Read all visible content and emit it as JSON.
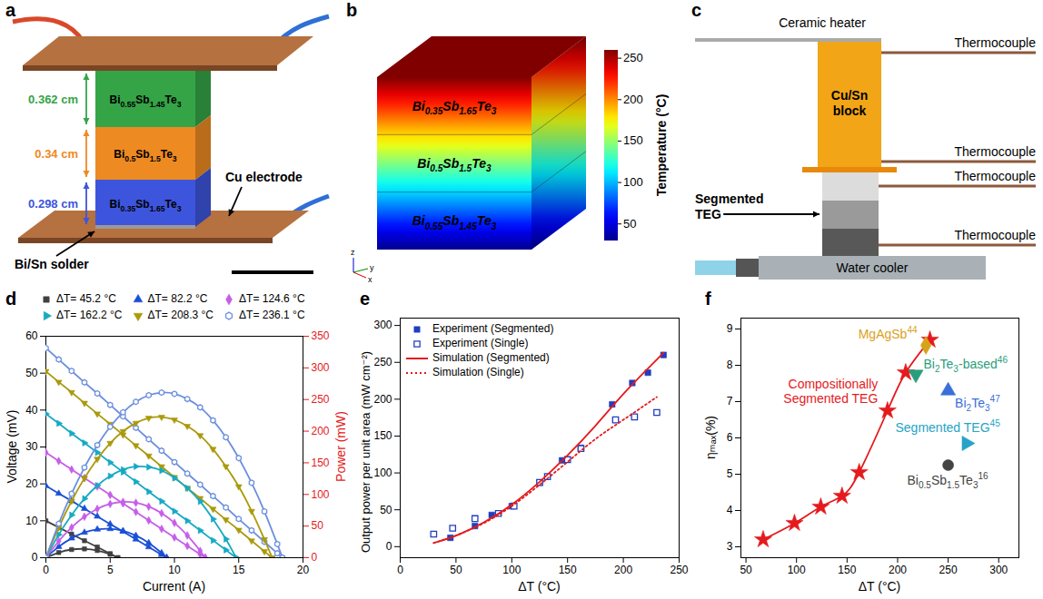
{
  "photo": {
    "letter": "a",
    "legs": [
      {
        "label": "Bi0.55Sb1.45Te3",
        "color": "#35a447",
        "thickness": "0.362 cm"
      },
      {
        "label": "Bi0.5Sb1.5Te3",
        "color": "#ee8a22",
        "thickness": "0.34 cm"
      },
      {
        "label": "Bi0.35Sb1.65Te3",
        "color": "#3d55dc",
        "thickness": "0.298 cm"
      }
    ],
    "solder": "Bi/Sn solder",
    "electrode": "Cu electrode"
  },
  "simulation": {
    "letter": "b",
    "layers": [
      "Bi0.35Sb1.65Te3",
      "Bi0.5Sb1.5Te3",
      "Bi0.55Sb1.45Te3"
    ],
    "axes": [
      "x",
      "y",
      "z"
    ],
    "colorbar": {
      "label": "Temperature (°C)",
      "range": [
        30,
        260
      ],
      "ticks": [
        50,
        100,
        150,
        200,
        250
      ]
    }
  },
  "setup": {
    "letter": "c",
    "heater": "Ceramic heater",
    "block": "Cu/Sn block",
    "thermocouples": [
      "Thermocouple",
      "Thermocouple",
      "Thermocouple",
      "Thermocouple"
    ],
    "teg": "Segmented TEG",
    "cooler": "Water cooler"
  },
  "chart_data": [
    {
      "letter": "d",
      "type": "line",
      "x_label": "Current (A)",
      "y_label": "Voltage (mV)",
      "y2_label": "Power (mW)",
      "xlim": [
        0,
        20
      ],
      "xticks": [
        0,
        5,
        10,
        15,
        20
      ],
      "ylim": [
        0,
        60
      ],
      "yticks": [
        0,
        10,
        20,
        30,
        40,
        50,
        60
      ],
      "y2lim": [
        0,
        350
      ],
      "y2ticks": [
        0,
        50,
        100,
        150,
        200,
        250,
        300,
        350
      ],
      "legend": "top",
      "series": [
        {
          "name": "ΔT= 45.2 °C",
          "color": "#404040",
          "marker": "square",
          "x": [
            0,
            1,
            2,
            3,
            4,
            5,
            5.6
          ],
          "values": [
            10,
            8.2,
            6.4,
            4.6,
            2.9,
            1.1,
            0
          ]
        },
        {
          "name": "ΔT= 82.2 °C",
          "color": "#1a4fd6",
          "marker": "triangle",
          "x": [
            0,
            1,
            2,
            3,
            4,
            5,
            6,
            7,
            8,
            9,
            9.4
          ],
          "values": [
            19.5,
            17.4,
            15.4,
            13.3,
            11.2,
            9.1,
            7.1,
            5.0,
            2.9,
            0.8,
            0
          ]
        },
        {
          "name": "ΔT= 124.6 °C",
          "color": "#c65ee8",
          "marker": "diamond",
          "x": [
            0,
            1,
            2,
            3,
            4,
            5,
            6,
            7,
            8,
            9,
            10,
            11,
            12,
            12.4
          ],
          "values": [
            28.5,
            26.2,
            23.9,
            21.6,
            19.3,
            17.0,
            14.7,
            12.4,
            10.1,
            7.8,
            5.5,
            3.2,
            0.9,
            0
          ]
        },
        {
          "name": "ΔT= 162.2 °C",
          "color": "#17a9c4",
          "marker": "triangle-right",
          "x": [
            0,
            1,
            2,
            3,
            4,
            5,
            6,
            7,
            8,
            9,
            10,
            11,
            12,
            13,
            14,
            14.8
          ],
          "values": [
            39.0,
            36.4,
            33.7,
            31.1,
            28.5,
            25.8,
            23.2,
            20.6,
            17.9,
            15.3,
            12.6,
            10.0,
            7.4,
            4.7,
            2.1,
            0
          ]
        },
        {
          "name": "ΔT= 208.3 °C",
          "color": "#aa9a0c",
          "marker": "triangle-down",
          "x": [
            0,
            1,
            2,
            3,
            4,
            5,
            6,
            7,
            8,
            9,
            10,
            11,
            12,
            13,
            14,
            15,
            16,
            17,
            17.6
          ],
          "values": [
            50.5,
            47.6,
            44.8,
            41.9,
            39.0,
            36.2,
            33.3,
            30.4,
            27.6,
            24.7,
            21.8,
            18.9,
            16.1,
            13.2,
            10.3,
            7.5,
            4.6,
            1.7,
            0
          ]
        },
        {
          "name": "ΔT= 236.1 °C",
          "color": "#6b8fdf",
          "marker": "hexagon",
          "x": [
            0,
            1,
            2,
            3,
            4,
            5,
            6,
            7,
            8,
            9,
            10,
            11,
            12,
            13,
            14,
            15,
            16,
            17,
            18,
            18.4
          ],
          "values": [
            56.8,
            53.7,
            50.6,
            47.5,
            44.5,
            41.4,
            38.3,
            35.2,
            32.1,
            29.0,
            25.9,
            22.8,
            19.8,
            16.7,
            13.6,
            10.5,
            7.4,
            4.3,
            1.2,
            0
          ]
        },
        {
          "name": "ΔT= 45.2 °C",
          "color": "#404040",
          "marker": "square",
          "axis": "y2",
          "x": [
            0,
            1,
            2,
            3,
            4,
            5,
            5.6
          ],
          "values": [
            0,
            8.2,
            12.9,
            13.9,
            11.4,
            5.4,
            0
          ]
        },
        {
          "name": "ΔT= 82.2 °C",
          "color": "#1a4fd6",
          "marker": "triangle",
          "axis": "y2",
          "x": [
            0,
            1,
            2,
            3,
            4,
            5,
            6,
            7,
            8,
            9,
            9.4
          ],
          "values": [
            0,
            17.4,
            30.7,
            39.9,
            44.8,
            45.6,
            42.4,
            34.9,
            23.3,
            7.5,
            0
          ]
        },
        {
          "name": "ΔT= 124.6 °C",
          "color": "#c65ee8",
          "marker": "diamond",
          "axis": "y2",
          "x": [
            0,
            1,
            2,
            3,
            4,
            5,
            6,
            7,
            8,
            9,
            10,
            11,
            12,
            12.4
          ],
          "values": [
            0,
            26.2,
            47.8,
            64.8,
            77.2,
            85.0,
            88.2,
            86.8,
            80.8,
            70.2,
            55.0,
            35.2,
            10.8,
            0
          ]
        },
        {
          "name": "ΔT= 162.2 °C",
          "color": "#17a9c4",
          "marker": "triangle-right",
          "axis": "y2",
          "x": [
            0,
            1,
            2,
            3,
            4,
            5,
            6,
            7,
            8,
            9,
            10,
            11,
            12,
            13,
            14,
            14.8
          ],
          "values": [
            0,
            36.4,
            67.4,
            93.3,
            114.0,
            129.0,
            139.2,
            144.2,
            143.2,
            137.7,
            126.0,
            110.0,
            88.8,
            61.1,
            29.4,
            0
          ]
        },
        {
          "name": "ΔT= 208.3 °C",
          "color": "#aa9a0c",
          "marker": "triangle-down",
          "axis": "y2",
          "x": [
            0,
            1,
            2,
            3,
            4,
            5,
            6,
            7,
            8,
            9,
            10,
            11,
            12,
            13,
            14,
            15,
            16,
            17,
            17.6
          ],
          "values": [
            0,
            47.6,
            89.6,
            125.7,
            156.0,
            181.0,
            199.8,
            212.8,
            220.8,
            222.3,
            218.0,
            207.9,
            193.2,
            171.6,
            144.2,
            112.5,
            73.6,
            28.9,
            0
          ]
        },
        {
          "name": "ΔT= 236.1 °C",
          "color": "#6b8fdf",
          "marker": "hexagon",
          "axis": "y2",
          "x": [
            0,
            1,
            2,
            3,
            4,
            5,
            6,
            7,
            8,
            9,
            10,
            11,
            12,
            13,
            14,
            15,
            16,
            17,
            18,
            18.4
          ],
          "values": [
            0,
            53.7,
            101.2,
            142.5,
            178.0,
            207.0,
            229.8,
            246.4,
            256.8,
            261.0,
            259.0,
            250.8,
            237.6,
            217.1,
            190.4,
            157.5,
            118.4,
            73.1,
            21.6,
            0
          ]
        }
      ]
    },
    {
      "letter": "e",
      "type": "scatter",
      "x_label": "ΔT (°C)",
      "y_label": "Output power per unit area (mW cm⁻²)",
      "xlim": [
        0,
        250
      ],
      "xticks": [
        0,
        50,
        100,
        150,
        200,
        250
      ],
      "ylim": [
        -15,
        310
      ],
      "yticks": [
        0,
        50,
        100,
        150,
        200,
        250,
        300
      ],
      "legend": "top-left",
      "series": [
        {
          "name": "Experiment (Segmented)",
          "type": "scatter",
          "color": "#1f3fbf",
          "marker": "square",
          "x": [
            45,
            67,
            82,
            100,
            125,
            145,
            162,
            190,
            208,
            222,
            236
          ],
          "values": [
            12,
            28,
            43,
            55,
            87,
            117,
            134,
            193,
            222,
            236,
            260
          ]
        },
        {
          "name": "Experiment (Single)",
          "type": "scatter",
          "color": "#1f3fbf",
          "marker": "square-open",
          "x": [
            30,
            47,
            67,
            88,
            102,
            125,
            132,
            150,
            162,
            193,
            210,
            230
          ],
          "values": [
            17,
            25,
            38,
            45,
            55,
            87,
            95,
            118,
            133,
            172,
            176,
            182
          ]
        },
        {
          "name": "Simulation (Segmented)",
          "type": "line",
          "color": "#e41a1c",
          "line_style": "solid",
          "x": [
            30,
            50,
            75,
            100,
            125,
            150,
            175,
            200,
            225,
            236
          ],
          "values": [
            5,
            15,
            33,
            57,
            88,
            124,
            164,
            207,
            246,
            263
          ]
        },
        {
          "name": "Simulation (Single)",
          "type": "line",
          "color": "#e41a1c",
          "line_style": "dotted",
          "x": [
            30,
            50,
            75,
            100,
            125,
            150,
            175,
            200,
            230
          ],
          "values": [
            5,
            15,
            32,
            55,
            84,
            115,
            146,
            172,
            203
          ]
        }
      ]
    },
    {
      "letter": "f",
      "type": "scatter",
      "x_label": "ΔT (°C)",
      "y_label": "ηₘₐₓ(%)",
      "xlim": [
        45,
        320
      ],
      "xticks": [
        50,
        100,
        150,
        200,
        250,
        300
      ],
      "ylim": [
        2.7,
        9.3
      ],
      "yticks": [
        3,
        4,
        5,
        6,
        7,
        8,
        9
      ],
      "series": [
        {
          "name": "Compositionally Segmented TEG",
          "color": "#e41a1c",
          "marker": "star",
          "line_style": "solid",
          "x": [
            67,
            98,
            124,
            145,
            162,
            190,
            208,
            232
          ],
          "values": [
            3.2,
            3.65,
            4.1,
            4.4,
            5.05,
            6.75,
            7.8,
            8.7
          ]
        },
        {
          "name": "MgAgSb",
          "ref": "44",
          "color": "#d9a21b",
          "marker": "diamond",
          "x": [
            228
          ],
          "values": [
            8.55
          ]
        },
        {
          "name": "Bi2Te3-based",
          "ref": "46",
          "color": "#2a9d7c",
          "marker": "triangle-down",
          "x": [
            218
          ],
          "values": [
            7.75
          ]
        },
        {
          "name": "Bi2Te3",
          "ref": "47",
          "color": "#3a6fd8",
          "marker": "triangle",
          "x": [
            250
          ],
          "values": [
            7.3
          ]
        },
        {
          "name": "Segmented TEG",
          "ref": "45",
          "color": "#26a3c6",
          "marker": "triangle-right",
          "x": [
            268
          ],
          "values": [
            5.85
          ]
        },
        {
          "name": "Bi0.5Sb1.5Te3",
          "ref": "16",
          "color": "#444444",
          "marker": "circle",
          "x": [
            250
          ],
          "values": [
            5.25
          ]
        }
      ]
    }
  ]
}
